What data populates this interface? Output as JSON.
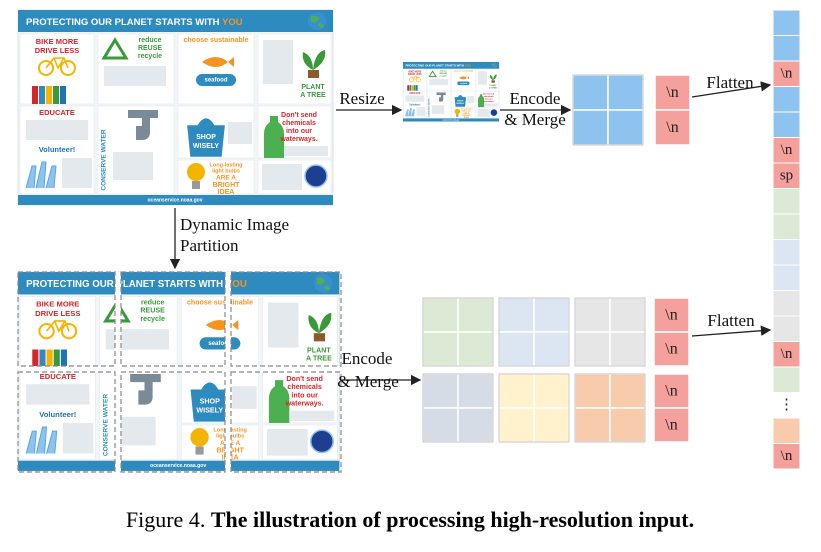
{
  "infographic": {
    "title": "PROTECTING OUR PLANET STARTS WITH",
    "title_highlight": "YOU",
    "bike": [
      "BIKE MORE",
      "DRIVE LESS"
    ],
    "recycle": [
      "reduce",
      "REUSE",
      "recycle"
    ],
    "seafood": [
      "choose sustainable",
      "seafood"
    ],
    "tree": [
      "PLANT",
      "A TREE"
    ],
    "educate": "EDUCATE",
    "water": "CONSERVE WATER",
    "shop": [
      "SHOP",
      "WISELY"
    ],
    "chemicals": [
      "Don't send",
      "chemicals",
      "into our",
      "waterways."
    ],
    "volunteer": "Volunteer!",
    "bulbs": [
      "Long-lasting",
      "light bulbs",
      "ARE A",
      "BRIGHT",
      "IDEA"
    ],
    "footer": "oceanservice.noaa.gov"
  },
  "labels": {
    "resize": "Resize",
    "encode_merge": [
      "Encode",
      "& Merge"
    ],
    "flatten": "Flatten",
    "partition": [
      "Dynamic Image",
      "Partition"
    ]
  },
  "top_tokens": [
    "\\n",
    "\\n"
  ],
  "bottom_tokens": [
    "\\n",
    "\\n",
    "\\n",
    "\\n"
  ],
  "sequence": [
    {
      "color": "#8fc3ef"
    },
    {
      "color": "#8fc3ef"
    },
    {
      "label": "\\n",
      "color": "#f4a09c"
    },
    {
      "color": "#8fc3ef"
    },
    {
      "color": "#8fc3ef"
    },
    {
      "label": "\\n",
      "color": "#f4a09c"
    },
    {
      "label": "sp",
      "color": "#f4a09c"
    },
    {
      "color": "#dbe9d5"
    },
    {
      "color": "#dbe9d5"
    },
    {
      "color": "#dce6f2"
    },
    {
      "color": "#dce6f2"
    },
    {
      "color": "#e6e6e6"
    },
    {
      "color": "#e6e6e6"
    },
    {
      "label": "\\n",
      "color": "#f4a09c"
    },
    {
      "color": "#dbe9d5"
    },
    {
      "label": "⋮"
    },
    {
      "color": "#f8cbad"
    },
    {
      "label": "\\n",
      "color": "#f4a09c"
    }
  ],
  "caption": {
    "label": "Figure 4.",
    "text": "The illustration of processing high-resolution input."
  }
}
